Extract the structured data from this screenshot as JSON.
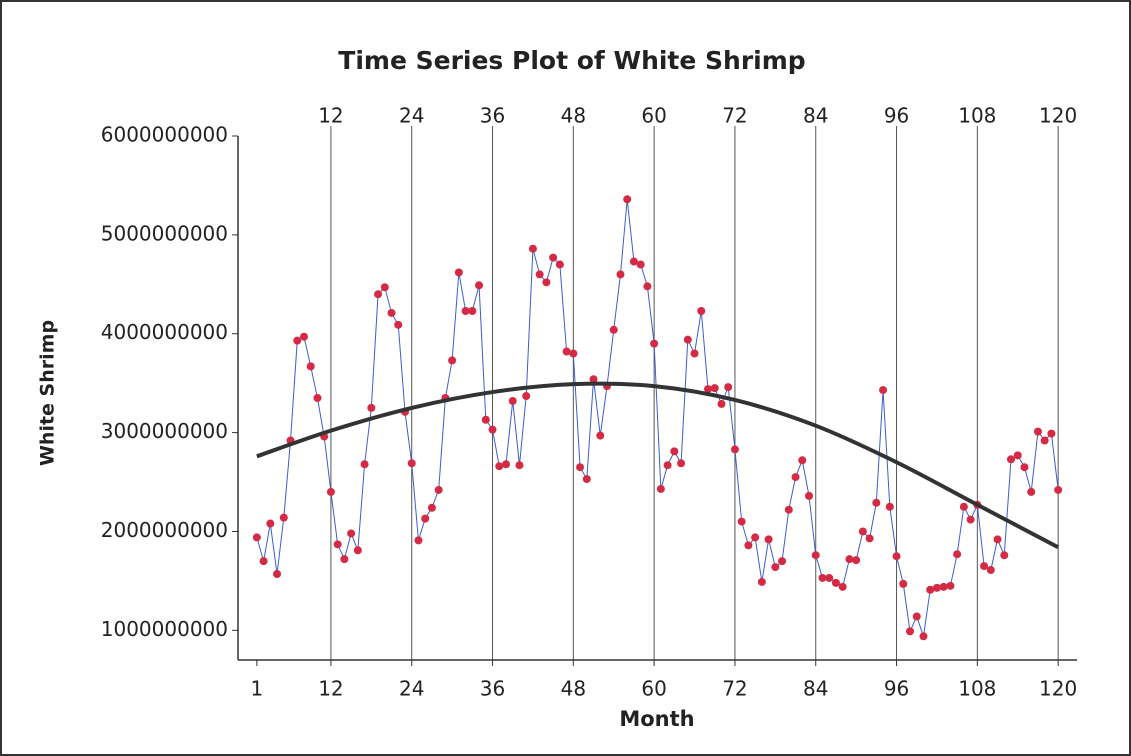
{
  "chart_data": {
    "type": "line",
    "title": "Time Series Plot of White Shrimp",
    "xlabel": "Month",
    "ylabel": "White Shrimp",
    "x": [
      1,
      2,
      3,
      4,
      5,
      6,
      7,
      8,
      9,
      10,
      11,
      12,
      13,
      14,
      15,
      16,
      17,
      18,
      19,
      20,
      21,
      22,
      23,
      24,
      25,
      26,
      27,
      28,
      29,
      30,
      31,
      32,
      33,
      34,
      35,
      36,
      37,
      38,
      39,
      40,
      41,
      42,
      43,
      44,
      45,
      46,
      47,
      48,
      49,
      50,
      51,
      52,
      53,
      54,
      55,
      56,
      57,
      58,
      59,
      60,
      61,
      62,
      63,
      64,
      65,
      66,
      67,
      68,
      69,
      70,
      71,
      72,
      73,
      74,
      75,
      76,
      77,
      78,
      79,
      80,
      81,
      82,
      83,
      84,
      85,
      86,
      87,
      88,
      89,
      90,
      91,
      92,
      93,
      94,
      95,
      96,
      97,
      98,
      99,
      100,
      101,
      102,
      103,
      104,
      105,
      106,
      107,
      108,
      109,
      110,
      111,
      112,
      113,
      114,
      115,
      116,
      117,
      118,
      119,
      120
    ],
    "series": [
      {
        "color": "#3b5fc8",
        "marker_color": "#d42a44",
        "values": [
          1940000000,
          1700000000,
          2080000000,
          1570000000,
          2140000000,
          2920000000,
          3930000000,
          3970000000,
          3670000000,
          3350000000,
          2960000000,
          2400000000,
          1870000000,
          1720000000,
          1980000000,
          1810000000,
          2680000000,
          3250000000,
          4400000000,
          4470000000,
          4210000000,
          4090000000,
          3210000000,
          2690000000,
          1910000000,
          2130000000,
          2240000000,
          2420000000,
          3350000000,
          3730000000,
          4620000000,
          4230000000,
          4230000000,
          4490000000,
          3130000000,
          3030000000,
          2660000000,
          2680000000,
          3320000000,
          2670000000,
          3370000000,
          4860000000,
          4600000000,
          4520000000,
          4770000000,
          4700000000,
          3820000000,
          3800000000,
          2650000000,
          2530000000,
          3540000000,
          2970000000,
          3470000000,
          4040000000,
          4600000000,
          5360000000,
          4730000000,
          4700000000,
          4480000000,
          3900000000,
          2430000000,
          2670000000,
          2810000000,
          2690000000,
          3940000000,
          3800000000,
          4230000000,
          3440000000,
          3450000000,
          3290000000,
          3460000000,
          2830000000,
          2100000000,
          1860000000,
          1940000000,
          1490000000,
          1920000000,
          1640000000,
          1700000000,
          2220000000,
          2550000000,
          2720000000,
          2360000000,
          1760000000,
          1530000000,
          1530000000,
          1480000000,
          1440000000,
          1720000000,
          1710000000,
          2000000000,
          1930000000,
          2290000000,
          3430000000,
          2250000000,
          1750000000,
          1470000000,
          990000000,
          1140000000,
          940000000,
          1410000000,
          1430000000,
          1440000000,
          1450000000,
          1770000000,
          2250000000,
          2120000000,
          2270000000,
          1650000000,
          1610000000,
          1920000000,
          1760000000,
          2730000000,
          2770000000,
          2650000000,
          2400000000,
          3010000000,
          2920000000,
          2990000000,
          2420000000
        ]
      }
    ],
    "trend": {
      "color": "#333333",
      "x": [
        1,
        12,
        24,
        36,
        48,
        60,
        72,
        84,
        96,
        108,
        120
      ],
      "values": [
        2760000000,
        3020000000,
        3250000000,
        3410000000,
        3490000000,
        3470000000,
        3330000000,
        3070000000,
        2700000000,
        2270000000,
        1840000000
      ]
    },
    "reference_lines": [
      12,
      24,
      36,
      48,
      60,
      72,
      84,
      96,
      108,
      120
    ],
    "xlim": [
      -1.8,
      122.8
    ],
    "xticks": [
      1,
      12,
      24,
      36,
      48,
      60,
      72,
      84,
      96,
      108,
      120
    ],
    "ylim": [
      700000000,
      6000000000
    ],
    "yticks": [
      1000000000,
      2000000000,
      3000000000,
      4000000000,
      5000000000,
      6000000000
    ]
  }
}
